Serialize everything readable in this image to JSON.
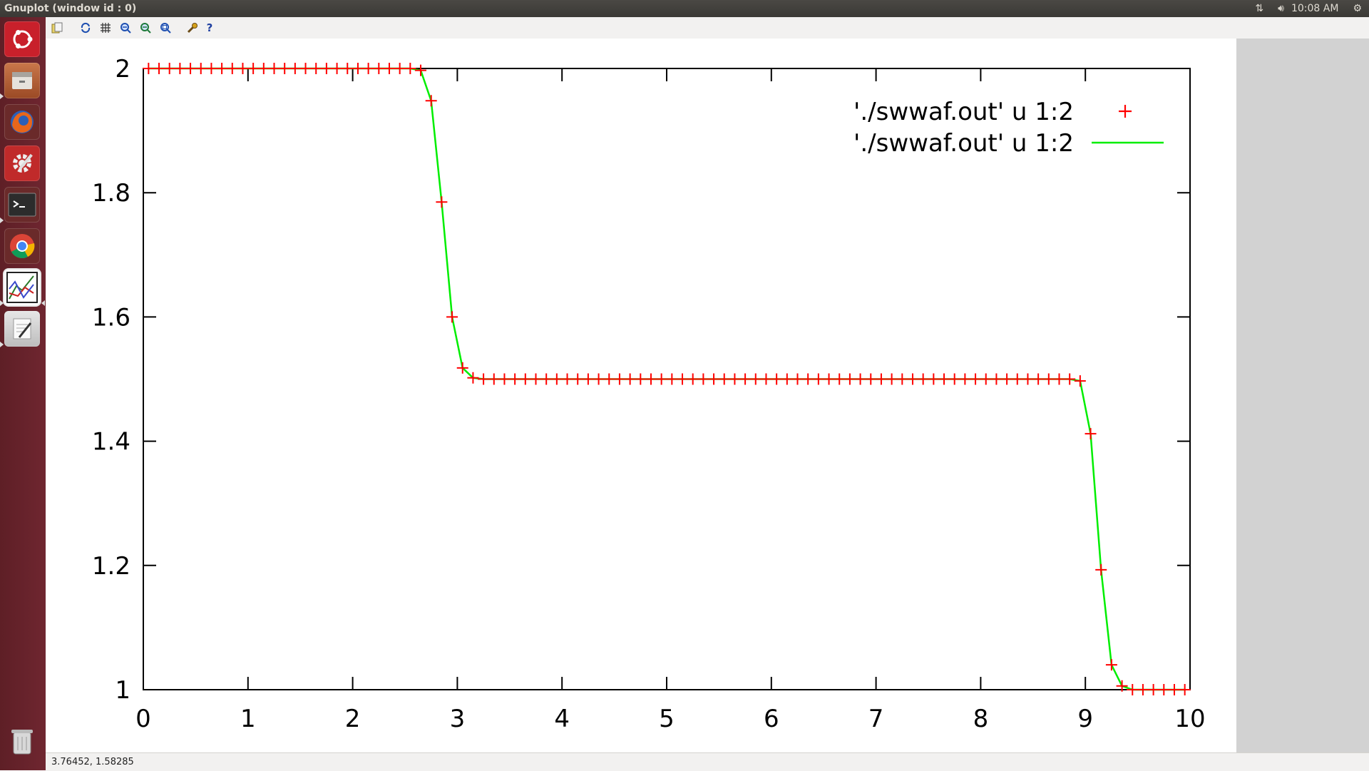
{
  "window": {
    "title": "Gnuplot (window id : 0)"
  },
  "panel": {
    "clock": "10:08 AM"
  },
  "launcher": {
    "items": [
      {
        "name": "ubuntu-dash-icon",
        "color": "#c8202b"
      },
      {
        "name": "files-icon",
        "color": "#b4623a"
      },
      {
        "name": "firefox-icon",
        "color": "#d7541b"
      },
      {
        "name": "system-settings-icon",
        "color": "#c02a2a"
      },
      {
        "name": "terminal-icon",
        "color": "#2c2c2c"
      },
      {
        "name": "chrome-icon",
        "color": "#3b7ddd"
      },
      {
        "name": "gnuplot-icon",
        "color": "#ffffff"
      },
      {
        "name": "text-editor-icon",
        "color": "#d8d8d8"
      }
    ],
    "trash": "trash-icon"
  },
  "toolbar": {
    "buttons": [
      {
        "name": "copy-clipboard-icon"
      },
      {
        "name": "replot-icon"
      },
      {
        "name": "grid-icon"
      },
      {
        "name": "zoom-prev-icon"
      },
      {
        "name": "zoom-next-icon"
      },
      {
        "name": "autoscale-icon"
      },
      {
        "name": "config-icon"
      },
      {
        "name": "help-icon"
      }
    ]
  },
  "statusbar": {
    "coords": "3.76452,  1.58285"
  },
  "chart_data": {
    "type": "line",
    "title": "",
    "xlabel": "",
    "ylabel": "",
    "xlim": [
      0,
      10
    ],
    "ylim": [
      1,
      2
    ],
    "x_ticks": [
      "0",
      "1",
      "2",
      "3",
      "4",
      "5",
      "6",
      "7",
      "8",
      "9",
      "10"
    ],
    "y_ticks": [
      "1",
      "1.2",
      "1.4",
      "1.6",
      "1.8",
      "2"
    ],
    "legend_position": "top-right",
    "grid": false,
    "series": [
      {
        "name": "'./swwaf.out' u 1:2",
        "style": "points",
        "marker": "+",
        "color": "#ff0000",
        "x": [
          0.05,
          0.15,
          0.25,
          0.35,
          0.45,
          0.55,
          0.65,
          0.75,
          0.85,
          0.95,
          1.05,
          1.15,
          1.25,
          1.35,
          1.45,
          1.55,
          1.65,
          1.75,
          1.85,
          1.95,
          2.05,
          2.15,
          2.25,
          2.35,
          2.45,
          2.55,
          2.65,
          2.75,
          2.85,
          2.95,
          3.05,
          3.15,
          3.25,
          3.35,
          3.45,
          3.55,
          3.65,
          3.75,
          3.85,
          3.95,
          4.05,
          4.15,
          4.25,
          4.35,
          4.45,
          4.55,
          4.65,
          4.75,
          4.85,
          4.95,
          5.05,
          5.15,
          5.25,
          5.35,
          5.45,
          5.55,
          5.65,
          5.75,
          5.85,
          5.95,
          6.05,
          6.15,
          6.25,
          6.35,
          6.45,
          6.55,
          6.65,
          6.75,
          6.85,
          6.95,
          7.05,
          7.15,
          7.25,
          7.35,
          7.45,
          7.55,
          7.65,
          7.75,
          7.85,
          7.95,
          8.05,
          8.15,
          8.25,
          8.35,
          8.45,
          8.55,
          8.65,
          8.75,
          8.85,
          8.95,
          9.05,
          9.15,
          9.25,
          9.35,
          9.45,
          9.55,
          9.65,
          9.75,
          9.85,
          9.95
        ],
        "y": [
          2,
          2,
          2,
          2,
          2,
          2,
          2,
          2,
          2,
          2,
          2,
          2,
          2,
          2,
          2,
          2,
          2,
          2,
          2,
          2,
          2,
          2,
          2,
          2,
          2,
          2,
          1.997,
          1.948,
          1.785,
          1.6,
          1.518,
          1.502,
          1.5,
          1.5,
          1.5,
          1.5,
          1.5,
          1.5,
          1.5,
          1.5,
          1.5,
          1.5,
          1.5,
          1.5,
          1.5,
          1.5,
          1.5,
          1.5,
          1.5,
          1.5,
          1.5,
          1.5,
          1.5,
          1.5,
          1.5,
          1.5,
          1.5,
          1.5,
          1.5,
          1.5,
          1.5,
          1.5,
          1.5,
          1.5,
          1.5,
          1.5,
          1.5,
          1.5,
          1.5,
          1.5,
          1.5,
          1.5,
          1.5,
          1.5,
          1.5,
          1.5,
          1.5,
          1.5,
          1.5,
          1.5,
          1.5,
          1.5,
          1.5,
          1.5,
          1.5,
          1.5,
          1.5,
          1.5,
          1.5,
          1.497,
          1.412,
          1.193,
          1.04,
          1.006,
          1,
          1,
          1,
          1,
          1,
          1
        ]
      },
      {
        "name": "'./swwaf.out' u 1:2",
        "style": "lines",
        "color": "#00ee00",
        "x": [
          0.05,
          0.15,
          0.25,
          0.35,
          0.45,
          0.55,
          0.65,
          0.75,
          0.85,
          0.95,
          1.05,
          1.15,
          1.25,
          1.35,
          1.45,
          1.55,
          1.65,
          1.75,
          1.85,
          1.95,
          2.05,
          2.15,
          2.25,
          2.35,
          2.45,
          2.55,
          2.65,
          2.75,
          2.85,
          2.95,
          3.05,
          3.15,
          3.25,
          3.35,
          3.45,
          3.55,
          3.65,
          3.75,
          3.85,
          3.95,
          4.05,
          4.15,
          4.25,
          4.35,
          4.45,
          4.55,
          4.65,
          4.75,
          4.85,
          4.95,
          5.05,
          5.15,
          5.25,
          5.35,
          5.45,
          5.55,
          5.65,
          5.75,
          5.85,
          5.95,
          6.05,
          6.15,
          6.25,
          6.35,
          6.45,
          6.55,
          6.65,
          6.75,
          6.85,
          6.95,
          7.05,
          7.15,
          7.25,
          7.35,
          7.45,
          7.55,
          7.65,
          7.75,
          7.85,
          7.95,
          8.05,
          8.15,
          8.25,
          8.35,
          8.45,
          8.55,
          8.65,
          8.75,
          8.85,
          8.95,
          9.05,
          9.15,
          9.25,
          9.35,
          9.45,
          9.55,
          9.65,
          9.75,
          9.85,
          9.95
        ],
        "y": [
          2,
          2,
          2,
          2,
          2,
          2,
          2,
          2,
          2,
          2,
          2,
          2,
          2,
          2,
          2,
          2,
          2,
          2,
          2,
          2,
          2,
          2,
          2,
          2,
          2,
          2,
          1.997,
          1.948,
          1.785,
          1.6,
          1.518,
          1.502,
          1.5,
          1.5,
          1.5,
          1.5,
          1.5,
          1.5,
          1.5,
          1.5,
          1.5,
          1.5,
          1.5,
          1.5,
          1.5,
          1.5,
          1.5,
          1.5,
          1.5,
          1.5,
          1.5,
          1.5,
          1.5,
          1.5,
          1.5,
          1.5,
          1.5,
          1.5,
          1.5,
          1.5,
          1.5,
          1.5,
          1.5,
          1.5,
          1.5,
          1.5,
          1.5,
          1.5,
          1.5,
          1.5,
          1.5,
          1.5,
          1.5,
          1.5,
          1.5,
          1.5,
          1.5,
          1.5,
          1.5,
          1.5,
          1.5,
          1.5,
          1.5,
          1.5,
          1.5,
          1.5,
          1.5,
          1.5,
          1.5,
          1.497,
          1.412,
          1.193,
          1.04,
          1.006,
          1,
          1,
          1,
          1,
          1,
          1
        ]
      }
    ]
  }
}
